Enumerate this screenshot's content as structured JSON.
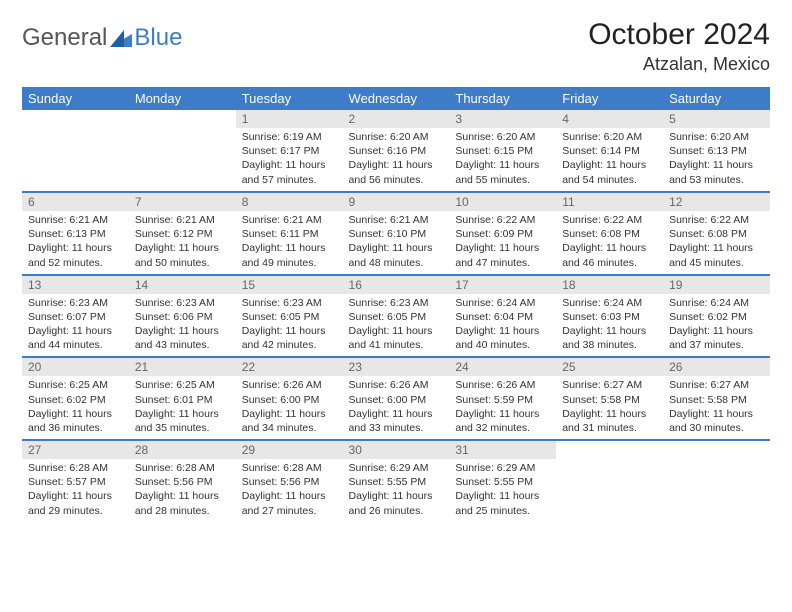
{
  "brand": {
    "part1": "General",
    "part2": "Blue"
  },
  "title": "October 2024",
  "location": "Atzalan, Mexico",
  "weekday_headers": [
    "Sunday",
    "Monday",
    "Tuesday",
    "Wednesday",
    "Thursday",
    "Friday",
    "Saturday"
  ],
  "colors": {
    "accent": "#3d7cc9",
    "header_bg": "#3d7cc9",
    "header_text": "#ffffff",
    "daynum_bg": "#e7e7e7",
    "text": "#333333",
    "background": "#ffffff"
  },
  "fonts": {
    "title_size": 30,
    "location_size": 18,
    "header_size": 13,
    "body_size": 10.5
  },
  "calendar": {
    "type": "table",
    "columns": 7,
    "rows": 5,
    "empty_leading": 2,
    "empty_trailing": 2,
    "days": [
      {
        "n": "1",
        "sr": "6:19 AM",
        "ss": "6:17 PM",
        "dl": "11 hours and 57 minutes."
      },
      {
        "n": "2",
        "sr": "6:20 AM",
        "ss": "6:16 PM",
        "dl": "11 hours and 56 minutes."
      },
      {
        "n": "3",
        "sr": "6:20 AM",
        "ss": "6:15 PM",
        "dl": "11 hours and 55 minutes."
      },
      {
        "n": "4",
        "sr": "6:20 AM",
        "ss": "6:14 PM",
        "dl": "11 hours and 54 minutes."
      },
      {
        "n": "5",
        "sr": "6:20 AM",
        "ss": "6:13 PM",
        "dl": "11 hours and 53 minutes."
      },
      {
        "n": "6",
        "sr": "6:21 AM",
        "ss": "6:13 PM",
        "dl": "11 hours and 52 minutes."
      },
      {
        "n": "7",
        "sr": "6:21 AM",
        "ss": "6:12 PM",
        "dl": "11 hours and 50 minutes."
      },
      {
        "n": "8",
        "sr": "6:21 AM",
        "ss": "6:11 PM",
        "dl": "11 hours and 49 minutes."
      },
      {
        "n": "9",
        "sr": "6:21 AM",
        "ss": "6:10 PM",
        "dl": "11 hours and 48 minutes."
      },
      {
        "n": "10",
        "sr": "6:22 AM",
        "ss": "6:09 PM",
        "dl": "11 hours and 47 minutes."
      },
      {
        "n": "11",
        "sr": "6:22 AM",
        "ss": "6:08 PM",
        "dl": "11 hours and 46 minutes."
      },
      {
        "n": "12",
        "sr": "6:22 AM",
        "ss": "6:08 PM",
        "dl": "11 hours and 45 minutes."
      },
      {
        "n": "13",
        "sr": "6:23 AM",
        "ss": "6:07 PM",
        "dl": "11 hours and 44 minutes."
      },
      {
        "n": "14",
        "sr": "6:23 AM",
        "ss": "6:06 PM",
        "dl": "11 hours and 43 minutes."
      },
      {
        "n": "15",
        "sr": "6:23 AM",
        "ss": "6:05 PM",
        "dl": "11 hours and 42 minutes."
      },
      {
        "n": "16",
        "sr": "6:23 AM",
        "ss": "6:05 PM",
        "dl": "11 hours and 41 minutes."
      },
      {
        "n": "17",
        "sr": "6:24 AM",
        "ss": "6:04 PM",
        "dl": "11 hours and 40 minutes."
      },
      {
        "n": "18",
        "sr": "6:24 AM",
        "ss": "6:03 PM",
        "dl": "11 hours and 38 minutes."
      },
      {
        "n": "19",
        "sr": "6:24 AM",
        "ss": "6:02 PM",
        "dl": "11 hours and 37 minutes."
      },
      {
        "n": "20",
        "sr": "6:25 AM",
        "ss": "6:02 PM",
        "dl": "11 hours and 36 minutes."
      },
      {
        "n": "21",
        "sr": "6:25 AM",
        "ss": "6:01 PM",
        "dl": "11 hours and 35 minutes."
      },
      {
        "n": "22",
        "sr": "6:26 AM",
        "ss": "6:00 PM",
        "dl": "11 hours and 34 minutes."
      },
      {
        "n": "23",
        "sr": "6:26 AM",
        "ss": "6:00 PM",
        "dl": "11 hours and 33 minutes."
      },
      {
        "n": "24",
        "sr": "6:26 AM",
        "ss": "5:59 PM",
        "dl": "11 hours and 32 minutes."
      },
      {
        "n": "25",
        "sr": "6:27 AM",
        "ss": "5:58 PM",
        "dl": "11 hours and 31 minutes."
      },
      {
        "n": "26",
        "sr": "6:27 AM",
        "ss": "5:58 PM",
        "dl": "11 hours and 30 minutes."
      },
      {
        "n": "27",
        "sr": "6:28 AM",
        "ss": "5:57 PM",
        "dl": "11 hours and 29 minutes."
      },
      {
        "n": "28",
        "sr": "6:28 AM",
        "ss": "5:56 PM",
        "dl": "11 hours and 28 minutes."
      },
      {
        "n": "29",
        "sr": "6:28 AM",
        "ss": "5:56 PM",
        "dl": "11 hours and 27 minutes."
      },
      {
        "n": "30",
        "sr": "6:29 AM",
        "ss": "5:55 PM",
        "dl": "11 hours and 26 minutes."
      },
      {
        "n": "31",
        "sr": "6:29 AM",
        "ss": "5:55 PM",
        "dl": "11 hours and 25 minutes."
      }
    ]
  },
  "labels": {
    "sunrise": "Sunrise: ",
    "sunset": "Sunset: ",
    "daylight": "Daylight: "
  }
}
